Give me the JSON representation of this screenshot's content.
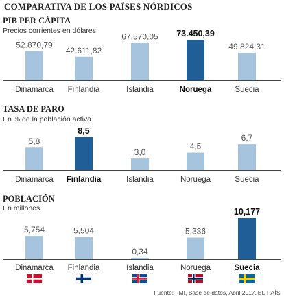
{
  "title": "COMPARATIVA DE LOS PAÍSES NÓRDICOS",
  "source": "Fuente: FMI, Base de datos, Abril 2017.",
  "brand": "EL PAÍS",
  "colors": {
    "bar": "#a7c4df",
    "highlight": "#1f5e96",
    "axis": "#444444"
  },
  "flags": [
    {
      "country": "Dinamarca",
      "icon": "denmark-flag-icon"
    },
    {
      "country": "Finlandia",
      "icon": "finland-flag-icon"
    },
    {
      "country": "Islandia",
      "icon": "iceland-flag-icon"
    },
    {
      "country": "Noruega",
      "icon": "norway-flag-icon"
    },
    {
      "country": "Suecia",
      "icon": "sweden-flag-icon"
    }
  ],
  "chart_data": [
    {
      "type": "bar",
      "title": "PIB PER CÁPITA",
      "subtitle": "Precios corrientes en dólares",
      "categories": [
        "Dinamarca",
        "Finlandia",
        "Islandia",
        "Noruega",
        "Suecia"
      ],
      "values": [
        52870.79,
        42611.82,
        67570.05,
        73450.39,
        49824.31
      ],
      "labels": [
        "52.870,79",
        "42.611,82",
        "67.570,05",
        "73.450,39",
        "49.824,31"
      ],
      "highlight": "Noruega",
      "ylim": [
        0,
        73450.39
      ]
    },
    {
      "type": "bar",
      "title": "TASA DE PARO",
      "subtitle": "En % de la población activa",
      "categories": [
        "Dinamarca",
        "Finlandia",
        "Islandia",
        "Noruega",
        "Suecia"
      ],
      "values": [
        5.8,
        8.5,
        3.0,
        4.5,
        6.7
      ],
      "labels": [
        "5,8",
        "8,5",
        "3,0",
        "4,5",
        "6,7"
      ],
      "highlight": "Finlandia",
      "ylim": [
        0,
        8.5
      ]
    },
    {
      "type": "bar",
      "title": "POBLACIÓN",
      "subtitle": "En millones",
      "categories": [
        "Dinamarca",
        "Finlandia",
        "Islandia",
        "Noruega",
        "Suecia"
      ],
      "values": [
        5.754,
        5.504,
        0.34,
        5.336,
        10.177
      ],
      "labels": [
        "5,754",
        "5,504",
        "0,34",
        "5,336",
        "10,177"
      ],
      "highlight": "Suecia",
      "ylim": [
        0,
        10.177
      ]
    }
  ]
}
